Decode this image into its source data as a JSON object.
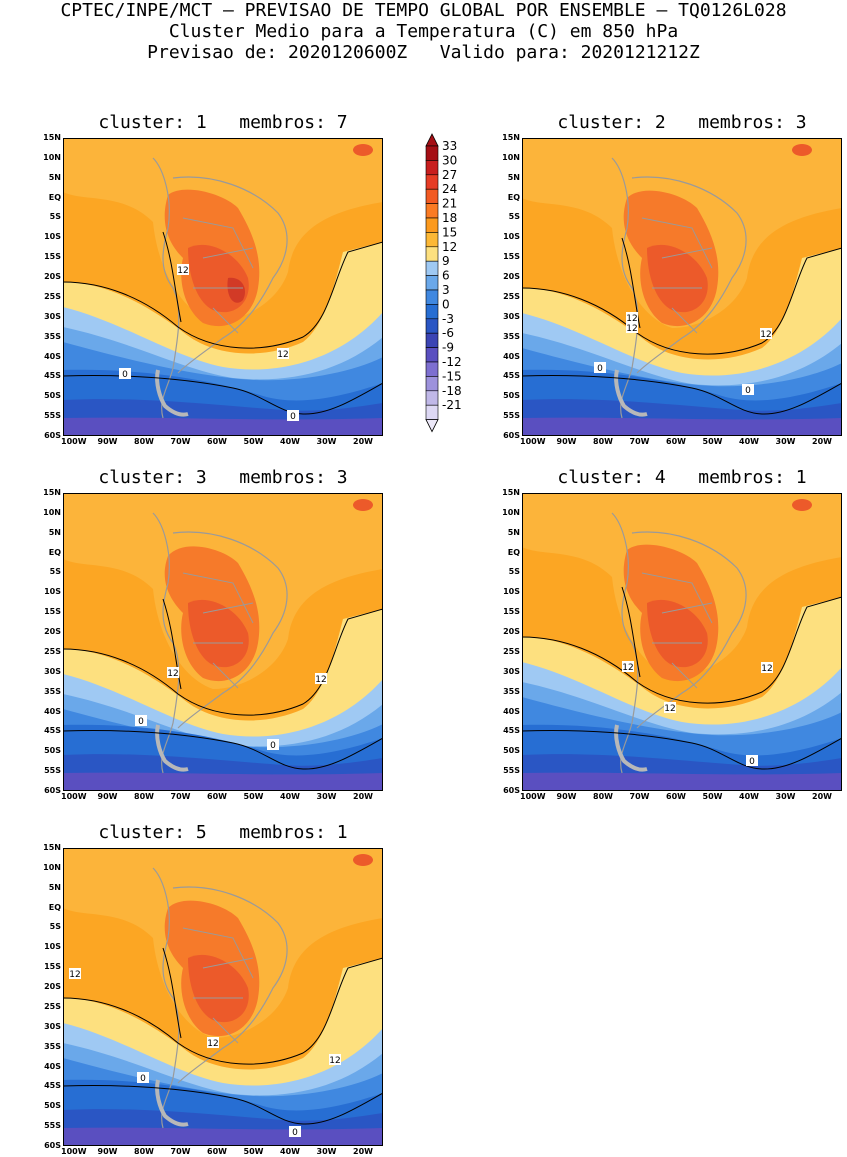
{
  "header": {
    "line1": "CPTEC/INPE/MCT — PREVISAO DE TEMPO GLOBAL POR ENSEMBLE — TQ0126L028",
    "line2": "Cluster Medio para a Temperatura (C) em 850 hPa",
    "line3": "Previsao de: 2020120600Z   Valido para: 2020121212Z"
  },
  "lat_labels": [
    "15N",
    "10N",
    "5N",
    "EQ",
    "5S",
    "10S",
    "15S",
    "20S",
    "25S",
    "30S",
    "35S",
    "40S",
    "45S",
    "50S",
    "55S",
    "60S"
  ],
  "lon_labels": [
    "100W",
    "90W",
    "80W",
    "70W",
    "60W",
    "50W",
    "40W",
    "30W",
    "20W"
  ],
  "colorbar": {
    "labels": [
      "33",
      "30",
      "27",
      "24",
      "21",
      "18",
      "15",
      "12",
      "9",
      "6",
      "3",
      "0",
      "-3",
      "-6",
      "-9",
      "-12",
      "-15",
      "-18",
      "-21"
    ],
    "colors": [
      "#a50f15",
      "#c81e1e",
      "#e63c25",
      "#f25a22",
      "#fa7b24",
      "#fc9a1e",
      "#fcb836",
      "#fde07f",
      "#9fc9f3",
      "#6aa8ea",
      "#4088e0",
      "#276ed3",
      "#2a56c4",
      "#3b44b4",
      "#5a4fc0",
      "#7d6fd0",
      "#9d92dc",
      "#c0b8e8",
      "#ddd8f4"
    ],
    "top_color": "#a50f15",
    "bottom_color": "#ece8f8"
  },
  "panels": [
    {
      "title": "cluster: 1   membros: 7",
      "contour_labels": [
        "12",
        "12",
        "0",
        "0"
      ]
    },
    {
      "title": "cluster: 2   membros: 3",
      "contour_labels": [
        "12",
        "12",
        "12",
        "0",
        "0"
      ]
    },
    {
      "title": "cluster: 3   membros: 3",
      "contour_labels": [
        "12",
        "12",
        "0",
        "0"
      ]
    },
    {
      "title": "cluster: 4   membros: 1",
      "contour_labels": [
        "12",
        "12",
        "12",
        "0"
      ]
    },
    {
      "title": "cluster: 5   membros: 1",
      "contour_labels": [
        "12",
        "12",
        "12",
        "0",
        "0"
      ]
    }
  ]
}
